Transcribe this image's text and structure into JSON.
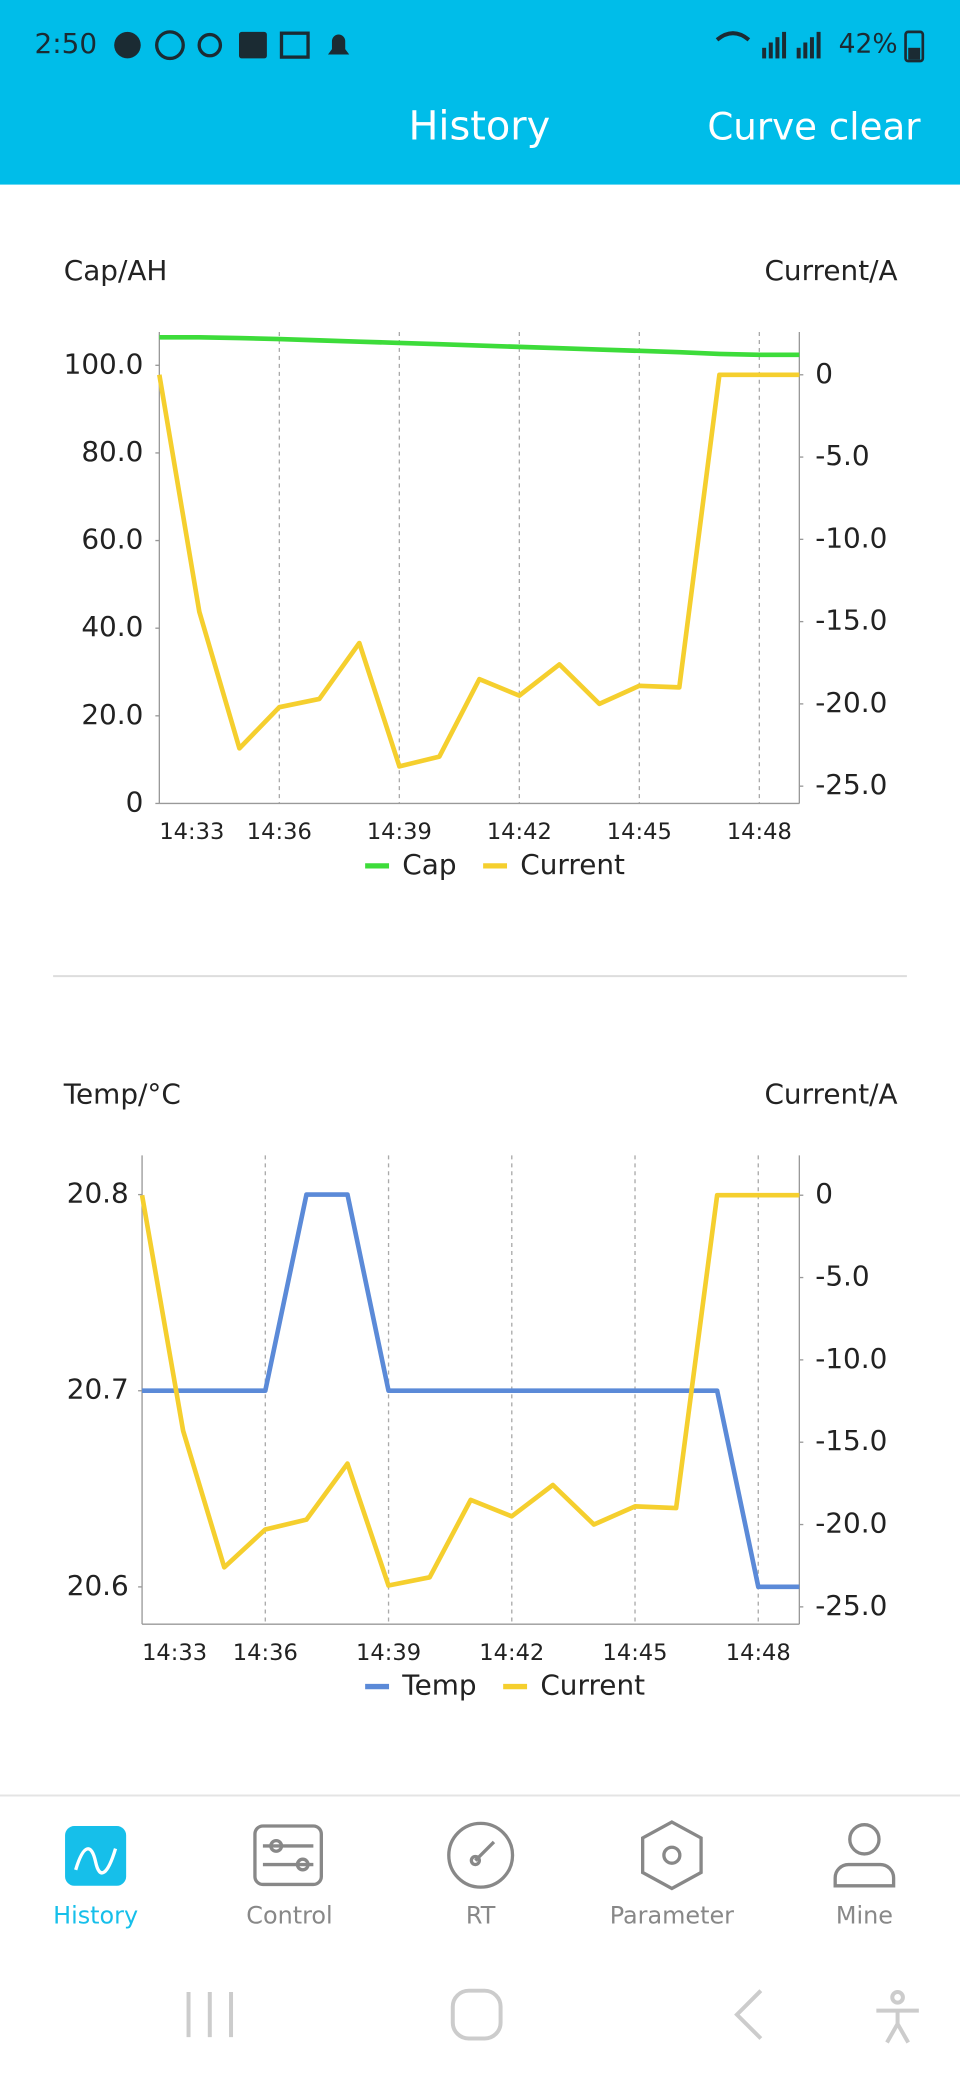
{
  "status_bar": {
    "time": "2:50",
    "battery": "42%"
  },
  "header": {
    "title": "History",
    "action": "Curve clear"
  },
  "chart_data": [
    {
      "type": "line",
      "y_label": "Cap/AH",
      "y2_label": "Current/A",
      "categories": [
        "14:33",
        null,
        null,
        "14:36",
        null,
        null,
        "14:39",
        null,
        null,
        "14:42",
        null,
        null,
        "14:45",
        null,
        null,
        "14:48",
        null
      ],
      "ylim": [
        0,
        107.6
      ],
      "yticks": [
        0,
        {
          "value": 20,
          "label": "20.0"
        },
        {
          "value": 40,
          "label": "40.0"
        },
        {
          "value": 60,
          "label": "60.0"
        },
        {
          "value": 80,
          "label": "80.0"
        },
        {
          "value": 100,
          "label": "100.0"
        }
      ],
      "y2lim": [
        -26.05,
        2.6
      ],
      "y2ticks": [
        {
          "value": -25,
          "label": "-25.0"
        },
        {
          "value": -20,
          "label": "-20.0"
        },
        {
          "value": -15,
          "label": "-15.0"
        },
        {
          "value": -10,
          "label": "-10.0"
        },
        {
          "value": -5,
          "label": "-5.0"
        },
        0
      ],
      "series": [
        {
          "name": "Cap",
          "color": "#3ddc3a",
          "values": [
            106.4,
            106.4,
            106.2,
            106.0,
            105.7,
            105.4,
            105.1,
            104.8,
            104.5,
            104.2,
            103.9,
            103.6,
            103.3,
            103.0,
            102.6,
            102.4,
            102.4
          ]
        },
        {
          "name": "Current",
          "color": "#f5cf2e",
          "axis": "y2",
          "values": [
            0,
            -14.4,
            -22.7,
            -20.2,
            -19.7,
            -16.3,
            -23.8,
            -23.2,
            -18.5,
            -19.5,
            -17.6,
            -20.0,
            -18.9,
            -19.0,
            0,
            0,
            0
          ]
        }
      ]
    },
    {
      "type": "line",
      "y_label": "Temp/°C",
      "y2_label": "Current/A",
      "categories": [
        "14:33",
        null,
        null,
        "14:36",
        null,
        null,
        "14:39",
        null,
        null,
        "14:42",
        null,
        null,
        "14:45",
        null,
        null,
        "14:48",
        null
      ],
      "ylim": [
        20.581,
        20.82
      ],
      "yticks": [
        20.6,
        20.7,
        20.8
      ],
      "y2lim": [
        -26.05,
        2.42
      ],
      "y2ticks": [
        {
          "value": -25,
          "label": "-25.0"
        },
        {
          "value": -20,
          "label": "-20.0"
        },
        {
          "value": -15,
          "label": "-15.0"
        },
        {
          "value": -10,
          "label": "-10.0"
        },
        {
          "value": -5,
          "label": "-5.0"
        },
        0
      ],
      "series": [
        {
          "name": "Temp",
          "color": "#5b8ad8",
          "values": [
            20.7,
            20.7,
            20.7,
            20.7,
            20.8,
            20.8,
            20.7,
            20.7,
            20.7,
            20.7,
            20.7,
            20.7,
            20.7,
            20.7,
            20.7,
            20.6,
            20.6
          ]
        },
        {
          "name": "Current",
          "color": "#f5cf2e",
          "axis": "y2",
          "values": [
            0,
            -14.3,
            -22.6,
            -20.3,
            -19.7,
            -16.3,
            -23.7,
            -23.2,
            -18.5,
            -19.5,
            -17.6,
            -20.0,
            -18.9,
            -19.0,
            0,
            0,
            0
          ]
        }
      ]
    }
  ],
  "nav": {
    "items": [
      "History",
      "Control",
      "RT",
      "Parameter",
      "Mine"
    ],
    "active": 0
  }
}
